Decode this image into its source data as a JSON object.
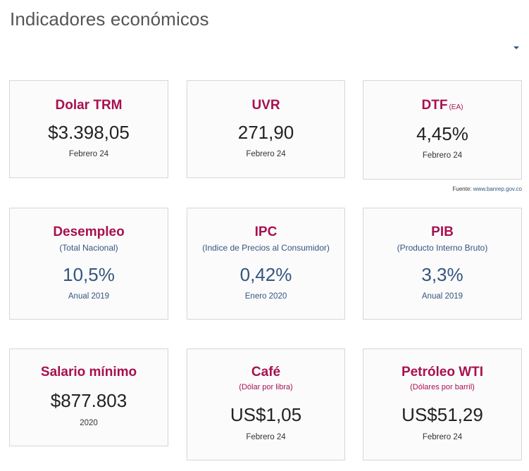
{
  "header": {
    "title": "Indicadores económicos"
  },
  "source": {
    "label": "Fuente:",
    "link": "www.banrep.gov.co"
  },
  "cards": {
    "dolar": {
      "title": "Dolar TRM",
      "value": "$3.398,05",
      "date": "Febrero 24"
    },
    "uvr": {
      "title": "UVR",
      "value": "271,90",
      "date": "Febrero 24"
    },
    "dtf": {
      "title": "DTF",
      "unit": "(EA)",
      "value": "4,45%",
      "date": "Febrero 24"
    },
    "desempleo": {
      "title": "Desempleo",
      "subtitle": "(Total Nacional)",
      "value": "10,5%",
      "date": "Anual 2019"
    },
    "ipc": {
      "title": "IPC",
      "subtitle": "(Indice de Precios al Consumidor)",
      "value": "0,42%",
      "date": "Enero 2020"
    },
    "pib": {
      "title": "PIB",
      "subtitle": "(Producto Interno Bruto)",
      "value": "3,3%",
      "date": "Anual 2019"
    },
    "salario": {
      "title": "Salario mínimo",
      "value": "$877.803",
      "date": "2020"
    },
    "cafe": {
      "title": "Café",
      "subtitle": "(Dólar por libra)",
      "value": "US$1,05",
      "date": "Febrero 24"
    },
    "petroleo": {
      "title": "Petróleo WTI",
      "subtitle": "(Dólares por barril)",
      "value": "US$51,29",
      "date": "Febrero 24"
    }
  },
  "colors": {
    "title_accent": "#a8104f",
    "value_blue": "#34557f",
    "card_border": "#d6d6d6"
  }
}
